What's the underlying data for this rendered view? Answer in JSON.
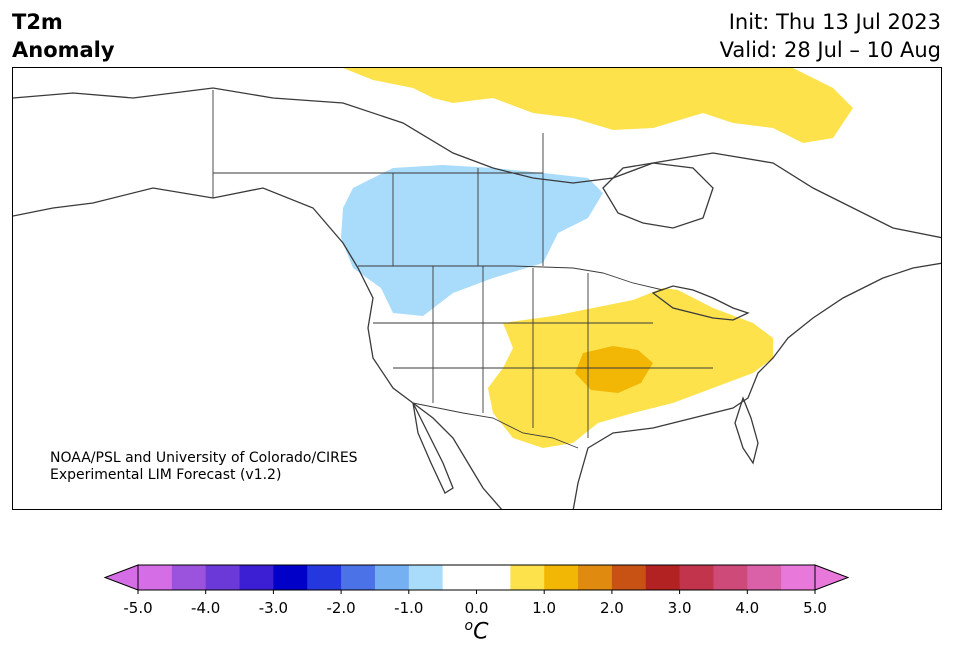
{
  "header": {
    "variable": "T2m",
    "field": "Anomaly",
    "init": "Init: Thu 13 Jul 2023",
    "valid": "Valid: 28 Jul – 10 Aug"
  },
  "map": {
    "region": "North America",
    "credit_line1": "NOAA/PSL and University of Colorado/CIRES",
    "credit_line2": "Experimental LIM Forecast (v1.2)"
  },
  "colorbar": {
    "unit_base": "C",
    "unit_prefix": "o",
    "ticks": [
      "-5.0",
      "-4.0",
      "-3.0",
      "-2.0",
      "-1.0",
      "0.0",
      "1.0",
      "2.0",
      "3.0",
      "4.0",
      "5.0"
    ],
    "colors": [
      "#d56ee6",
      "#9b52dc",
      "#6c39d9",
      "#3c1fd2",
      "#0000c8",
      "#2537de",
      "#4b72e6",
      "#74b0f2",
      "#a9dbfa",
      "#ffffff",
      "#ffffff",
      "#fde24b",
      "#f2b705",
      "#e08a10",
      "#c85214",
      "#b22222",
      "#c1344b",
      "#cd4a79",
      "#da60a8",
      "#e879da"
    ],
    "below_color": "#d56ee6",
    "above_color": "#e879da"
  },
  "anomaly_colors": {
    "cool": "#a9dbfa",
    "warm": "#fde24b",
    "warmer": "#f2b705"
  }
}
